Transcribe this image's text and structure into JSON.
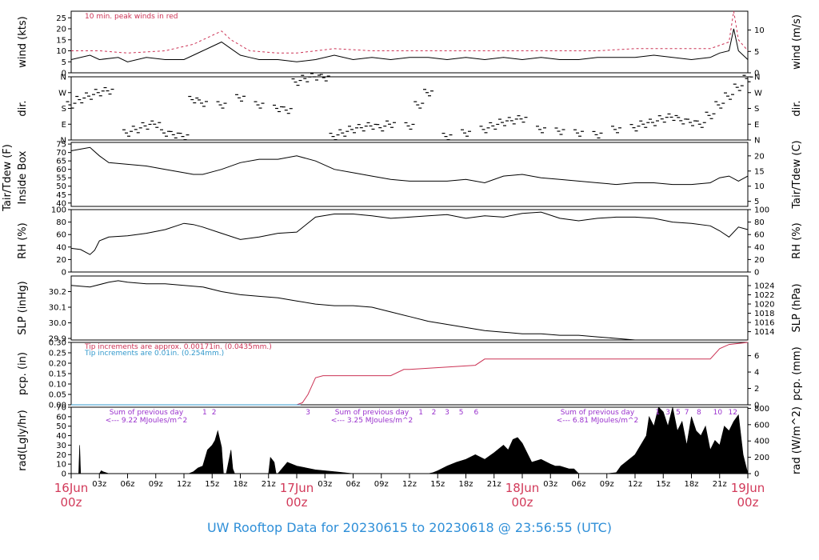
{
  "title": "UW Rooftop Data for 20230615  to  20230618 @ 23:56:55  (UTC)",
  "colors": {
    "red": "#cc3355",
    "blue": "#3399cc",
    "purple": "#9a32cd",
    "title": "#2f8fd8",
    "date": "#d23a5a"
  },
  "x_axis": {
    "hour_ticks": [
      "03z",
      "06z",
      "09z",
      "12z",
      "15z",
      "18z",
      "21z",
      "03z",
      "06z",
      "09z",
      "12z",
      "15z",
      "18z",
      "21z",
      "03z",
      "06z",
      "09z",
      "12z",
      "15z",
      "18z",
      "21z"
    ],
    "day_labels": [
      {
        "day": "16Jun",
        "hour": "00z"
      },
      {
        "day": "17Jun",
        "hour": "00z"
      },
      {
        "day": "18Jun",
        "hour": "00z"
      },
      {
        "day": "19Jun",
        "hour": "00z"
      }
    ]
  },
  "panels": {
    "wind": {
      "ylabel_left": "wind (kts)",
      "ylabel_right": "wind (m/s)",
      "note": "10 min. peak winds in red",
      "left_ticks": [
        "0",
        "5",
        "10",
        "15",
        "20",
        "25"
      ],
      "right_ticks": [
        "0",
        "5",
        "10"
      ]
    },
    "dir": {
      "ylabel_left": "dir.",
      "ylabel_right": "dir.",
      "ticks": [
        "N",
        "E",
        "S",
        "W",
        "N"
      ]
    },
    "temp": {
      "ylabel_outer": "Tair/Tdew (F)",
      "ylabel_inner": "Inside Box",
      "ylabel_right": "Tair/Tdew (C)",
      "left_ticks": [
        "40",
        "45",
        "50",
        "55",
        "60",
        "65",
        "70",
        "75"
      ],
      "right_ticks": [
        "5",
        "10",
        "15",
        "20"
      ]
    },
    "rh": {
      "ylabel_left": "RH (%)",
      "ylabel_right": "RH (%)",
      "ticks": [
        "0",
        "20",
        "40",
        "60",
        "80",
        "100"
      ]
    },
    "slp": {
      "ylabel_left": "SLP (inHg)",
      "ylabel_right": "SLP (hPa)",
      "left_ticks": [
        "29.9",
        "30.0",
        "30.1",
        "30.2"
      ],
      "right_ticks": [
        "1014",
        "1016",
        "1018",
        "1020",
        "1022",
        "1024"
      ]
    },
    "pcp": {
      "ylabel_left": "pcp. (in)",
      "ylabel_right": "pcp. (mm)",
      "note_red": "Tip increments are approx. 0.00171in. (0.0435mm.)",
      "note_blue": "Tip increments are 0.01in. (0.254mm.)",
      "left_ticks": [
        "0.00",
        "0.05",
        "0.10",
        "0.15",
        "0.20",
        "0.25",
        "0.30"
      ],
      "right_ticks": [
        "0",
        "2",
        "4",
        "6"
      ]
    },
    "rad": {
      "ylabel_left": "rad(Lgly/hr)",
      "ylabel_right": "rad (W/m^2)",
      "left_ticks": [
        "0",
        "10",
        "20",
        "30",
        "40",
        "50",
        "60",
        "70"
      ],
      "right_ticks": [
        "0",
        "200",
        "400",
        "600",
        "800"
      ],
      "sums": [
        {
          "label": "Sum of previous day",
          "value": "<--- 9.22 MJoules/m^2"
        },
        {
          "label": "Sum of previous day",
          "value": "<--- 3.25 MJoules/m^2"
        },
        {
          "label": "Sum of previous day",
          "value": "<--- 6.81 MJoules/m^2"
        }
      ],
      "hour_marks": [
        {
          "day": 0,
          "labels": [
            [
              "1",
              14.2
            ],
            [
              "2",
              15.2
            ]
          ]
        },
        {
          "day": 1,
          "labels": [
            [
              "3",
              1.2
            ],
            [
              "1",
              13.2
            ],
            [
              "2",
              14.6
            ],
            [
              "3",
              16.0
            ],
            [
              "5",
              17.5
            ],
            [
              "6",
              19.1
            ]
          ]
        },
        {
          "day": 2,
          "labels": [
            [
              "1",
              14.4
            ],
            [
              "3",
              15.5
            ],
            [
              "5",
              16.6
            ],
            [
              "7",
              17.5
            ],
            [
              "8",
              18.8
            ],
            [
              "10",
              20.8
            ],
            [
              "12",
              22.4
            ]
          ]
        }
      ]
    }
  },
  "chart_data": {
    "type": "line",
    "x_unit": "hours since 16Jun 00z",
    "x_range": [
      0,
      72
    ],
    "series": [
      {
        "panel": "wind",
        "color": "black",
        "unit": "kts",
        "ylim": [
          0,
          28
        ],
        "x": [
          0,
          2,
          3,
          5,
          6,
          8,
          10,
          12,
          13,
          14,
          15,
          16,
          17,
          18,
          19,
          20,
          22,
          24,
          26,
          28,
          30,
          32,
          34,
          36,
          38,
          40,
          42,
          44,
          46,
          48,
          50,
          52,
          54,
          56,
          58,
          60,
          62,
          64,
          66,
          68,
          69,
          70,
          70.5,
          71,
          72
        ],
        "y": [
          6,
          8,
          6,
          7,
          5,
          7,
          6,
          6,
          8,
          10,
          12,
          14,
          11,
          8,
          7,
          6,
          6,
          5,
          6,
          8,
          6,
          7,
          6,
          7,
          7,
          6,
          7,
          6,
          7,
          6,
          7,
          6,
          6,
          7,
          7,
          7,
          8,
          7,
          6,
          7,
          9,
          10,
          20,
          10,
          6
        ]
      },
      {
        "panel": "wind",
        "name": "10 min. peak winds in red",
        "color": "red",
        "style": "dashed",
        "unit": "kts",
        "ylim": [
          0,
          28
        ],
        "x": [
          0,
          3,
          6,
          10,
          13,
          15,
          16,
          17,
          19,
          22,
          24,
          28,
          32,
          36,
          40,
          44,
          48,
          52,
          56,
          60,
          64,
          68,
          70,
          70.5,
          71,
          72
        ],
        "y": [
          10,
          10,
          9,
          10,
          13,
          17,
          19,
          15,
          10,
          9,
          9,
          11,
          10,
          10,
          10,
          10,
          10,
          10,
          10,
          11,
          11,
          11,
          14,
          28,
          15,
          10
        ]
      },
      {
        "panel": "dir",
        "color": "black",
        "style": "dashes",
        "unit": "deg",
        "ylim": [
          0,
          360
        ],
        "x": [
          0,
          1,
          2,
          3,
          4,
          6,
          7,
          8,
          9,
          10,
          11,
          12,
          13,
          14,
          16,
          18,
          20,
          22,
          23,
          24,
          25,
          26,
          27,
          28,
          29,
          30,
          31,
          32,
          33,
          34,
          36,
          37,
          38,
          40,
          42,
          44,
          45,
          46,
          47,
          48,
          50,
          52,
          54,
          56,
          58,
          60,
          61,
          62,
          63,
          64,
          65,
          66,
          67,
          68,
          69,
          70,
          71,
          72
        ],
        "y": [
          200,
          230,
          250,
          270,
          280,
          40,
          60,
          80,
          90,
          40,
          30,
          20,
          230,
          210,
          200,
          240,
          200,
          180,
          170,
          330,
          350,
          360,
          355,
          20,
          40,
          60,
          70,
          80,
          70,
          90,
          80,
          200,
          270,
          20,
          40,
          60,
          80,
          100,
          110,
          120,
          60,
          50,
          40,
          30,
          60,
          70,
          90,
          100,
          120,
          130,
          110,
          100,
          90,
          140,
          200,
          250,
          300,
          350
        ]
      },
      {
        "panel": "temp",
        "color": "black",
        "unit": "F",
        "ylim": [
          38,
          76
        ],
        "x": [
          0,
          1,
          2,
          3,
          4,
          6,
          8,
          10,
          12,
          13,
          14,
          16,
          18,
          20,
          22,
          24,
          26,
          28,
          30,
          32,
          34,
          36,
          38,
          40,
          42,
          44,
          46,
          48,
          50,
          52,
          54,
          56,
          58,
          60,
          62,
          64,
          66,
          68,
          69,
          70,
          71,
          72
        ],
        "y": [
          71,
          72,
          73,
          68,
          64,
          63,
          62,
          60,
          58,
          57,
          57,
          60,
          64,
          66,
          66,
          68,
          65,
          60,
          58,
          56,
          54,
          53,
          53,
          53,
          54,
          52,
          56,
          57,
          55,
          54,
          53,
          52,
          51,
          52,
          52,
          51,
          51,
          52,
          55,
          56,
          53,
          56
        ]
      },
      {
        "panel": "rh",
        "color": "black",
        "unit": "%",
        "ylim": [
          0,
          100
        ],
        "x": [
          0,
          1,
          2,
          2.5,
          3,
          4,
          6,
          8,
          10,
          12,
          13,
          14,
          16,
          18,
          20,
          22,
          24,
          26,
          28,
          30,
          32,
          34,
          36,
          38,
          40,
          42,
          44,
          46,
          48,
          50,
          52,
          54,
          56,
          58,
          60,
          62,
          64,
          66,
          68,
          69,
          70,
          71,
          72
        ],
        "y": [
          38,
          36,
          28,
          35,
          50,
          56,
          58,
          62,
          68,
          78,
          76,
          72,
          62,
          52,
          56,
          62,
          64,
          88,
          93,
          93,
          90,
          86,
          88,
          90,
          92,
          86,
          90,
          88,
          94,
          96,
          86,
          82,
          86,
          88,
          88,
          86,
          80,
          78,
          74,
          66,
          56,
          72,
          68
        ]
      },
      {
        "panel": "slp",
        "color": "black",
        "unit": "inHg",
        "ylim": [
          29.89,
          30.3
        ],
        "x": [
          0,
          2,
          4,
          5,
          6,
          8,
          10,
          12,
          14,
          16,
          18,
          20,
          22,
          24,
          26,
          28,
          30,
          32,
          34,
          36,
          38,
          40,
          42,
          44,
          46,
          48,
          50,
          52,
          54,
          56,
          58,
          60,
          62,
          64,
          66,
          68,
          70,
          71,
          72
        ],
        "y": [
          30.24,
          30.23,
          30.26,
          30.27,
          30.26,
          30.25,
          30.25,
          30.24,
          30.23,
          30.2,
          30.18,
          30.17,
          30.16,
          30.14,
          30.12,
          30.11,
          30.11,
          30.1,
          30.07,
          30.04,
          30.01,
          29.99,
          29.97,
          29.95,
          29.94,
          29.93,
          29.93,
          29.92,
          29.92,
          29.91,
          29.9,
          29.89,
          29.88,
          29.88,
          29.88,
          29.88,
          29.88,
          29.89,
          29.89
        ]
      },
      {
        "panel": "pcp",
        "name": "Tip increments are approx. 0.00171in. (0.0435mm.)",
        "color": "red",
        "unit": "in",
        "ylim": [
          0,
          0.3
        ],
        "x": [
          0,
          24,
          24.6,
          25.2,
          25.6,
          26,
          26.8,
          34,
          35.4,
          36,
          43,
          44,
          46,
          64,
          68,
          69,
          70,
          72
        ],
        "y": [
          0.0,
          0.0,
          0.01,
          0.05,
          0.09,
          0.13,
          0.14,
          0.14,
          0.17,
          0.17,
          0.19,
          0.22,
          0.22,
          0.22,
          0.22,
          0.27,
          0.29,
          0.3
        ]
      },
      {
        "panel": "pcp",
        "name": "Tip increments are 0.01in. (0.254mm.)",
        "color": "blue",
        "unit": "in",
        "ylim": [
          0,
          0.3
        ],
        "x": [
          0,
          24.4
        ],
        "y": [
          0,
          0
        ]
      },
      {
        "panel": "rad",
        "color": "black",
        "style": "filled",
        "unit": "Lgly/hr",
        "ylim": [
          0,
          70
        ],
        "x": [
          0,
          0.8,
          0.9,
          1.0,
          3,
          3.2,
          3.4,
          4,
          4.2,
          12.5,
          13,
          13.5,
          14,
          14.5,
          15,
          15.3,
          15.6,
          16,
          16.2,
          16.5,
          17,
          17.2,
          17.4,
          18.2,
          21,
          21.2,
          21.6,
          21.8,
          22,
          23,
          24,
          25,
          26,
          27,
          28,
          29,
          30,
          30.5,
          31,
          33.5,
          36,
          38,
          38.5,
          39,
          40,
          41,
          42,
          43,
          44,
          45,
          46,
          46.5,
          47,
          47.5,
          48,
          49,
          50,
          51,
          51.5,
          52,
          53,
          53.5,
          54,
          54.5,
          55,
          55.5,
          56,
          57,
          58,
          58.5,
          60,
          61.2,
          61.5,
          62,
          62.5,
          63,
          63.5,
          64,
          64.5,
          65,
          65.5,
          66,
          66.5,
          67,
          67.5,
          68,
          68.5,
          69,
          69.5,
          70,
          70.5,
          71,
          71.5,
          72
        ],
        "y": [
          0,
          0,
          30,
          0,
          0,
          3,
          2,
          0,
          0,
          0,
          2,
          6,
          8,
          25,
          30,
          35,
          45,
          28,
          0,
          0,
          25,
          5,
          0,
          0,
          0,
          17,
          12,
          0,
          0,
          12,
          8,
          6,
          4,
          3,
          2,
          1,
          0,
          0,
          0,
          0,
          0,
          0,
          1,
          3,
          8,
          12,
          15,
          20,
          15,
          22,
          30,
          25,
          36,
          38,
          32,
          12,
          15,
          10,
          8,
          8,
          5,
          5,
          0,
          0,
          0,
          0,
          0,
          0,
          1,
          8,
          20,
          40,
          60,
          50,
          70,
          65,
          50,
          70,
          45,
          55,
          30,
          60,
          45,
          40,
          50,
          25,
          35,
          30,
          50,
          45,
          55,
          62,
          20,
          0
        ]
      }
    ]
  }
}
